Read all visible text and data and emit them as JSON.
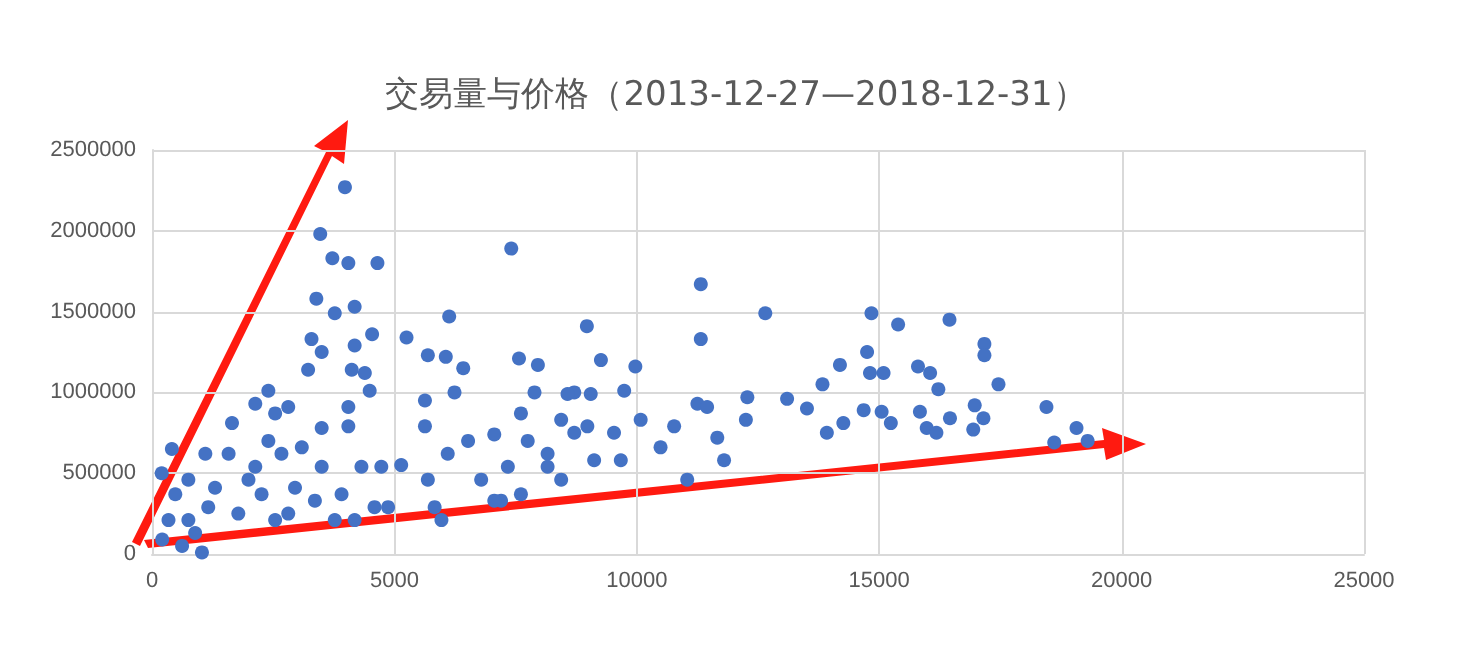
{
  "chart_data": {
    "type": "scatter",
    "title": "交易量与价格（2013-12-27—2018-12-31）",
    "xlim": [
      0,
      25000
    ],
    "xticks": [
      0,
      5000,
      10000,
      15000,
      20000,
      25000
    ],
    "ylim": [
      0,
      2500000
    ],
    "yticks": [
      0,
      500000,
      1000000,
      1500000,
      2000000,
      2500000
    ],
    "grid": true,
    "marker": "circle",
    "series": [
      {
        "color": "#4472c4",
        "x": [
          3980,
          3470,
          3720,
          4050,
          4650,
          3390,
          3770,
          4180,
          4540,
          3290,
          3500,
          4180,
          3220,
          4120,
          4390,
          4490,
          5250,
          5690,
          6130,
          6060,
          6420,
          7410,
          2400,
          2130,
          2810,
          2540,
          1650,
          410,
          1100,
          200,
          340,
          620,
          890,
          1160,
          480,
          750,
          1300,
          210,
          1030,
          750,
          1580,
          1780,
          2130,
          2400,
          2670,
          2950,
          2540,
          2260,
          2810,
          1990,
          3090,
          3500,
          3770,
          4050,
          4320,
          4590,
          3360,
          4180,
          4730,
          3500,
          3910,
          4870,
          4050,
          5140,
          5690,
          5830,
          5630,
          5630,
          6240,
          6100,
          6520,
          7060,
          7610,
          7890,
          8710,
          7340,
          8160,
          8980,
          6790,
          7610,
          7200,
          8440,
          5970,
          8970,
          7570,
          7960,
          9260,
          9970,
          11320,
          11320,
          12650,
          8570,
          9050,
          9740,
          8440,
          9530,
          10080,
          10770,
          11250,
          11450,
          10490,
          9670,
          11040,
          9120,
          8160,
          7750,
          7060,
          8710,
          11800,
          11660,
          12250,
          12280,
          13100,
          13510,
          13830,
          13920,
          14190,
          14260,
          14680,
          14750,
          14840,
          14810,
          15090,
          15050,
          15240,
          15390,
          15800,
          16050,
          16220,
          15840,
          15980,
          16180,
          16450,
          16460,
          16970,
          16940,
          17170,
          17170,
          17150,
          17460,
          18450,
          18610,
          19070,
          19300
        ],
        "values": [
          2270000,
          1980000,
          1830000,
          1800000,
          1800000,
          1580000,
          1490000,
          1530000,
          1360000,
          1330000,
          1250000,
          1290000,
          1140000,
          1140000,
          1120000,
          1010000,
          1340000,
          1230000,
          1470000,
          1220000,
          1150000,
          1890000,
          1010000,
          930000,
          910000,
          870000,
          810000,
          650000,
          620000,
          500000,
          210000,
          50000,
          130000,
          290000,
          370000,
          460000,
          410000,
          90000,
          10000,
          210000,
          620000,
          250000,
          540000,
          700000,
          620000,
          410000,
          210000,
          370000,
          250000,
          460000,
          660000,
          540000,
          210000,
          790000,
          540000,
          290000,
          330000,
          210000,
          540000,
          780000,
          370000,
          290000,
          910000,
          550000,
          460000,
          290000,
          790000,
          950000,
          1000000,
          620000,
          700000,
          740000,
          870000,
          1000000,
          1000000,
          540000,
          620000,
          790000,
          460000,
          370000,
          330000,
          460000,
          210000,
          1410000,
          1210000,
          1170000,
          1200000,
          1160000,
          1670000,
          1330000,
          1490000,
          990000,
          990000,
          1010000,
          830000,
          750000,
          830000,
          790000,
          930000,
          910000,
          660000,
          580000,
          460000,
          580000,
          540000,
          700000,
          330000,
          750000,
          580000,
          720000,
          830000,
          970000,
          960000,
          900000,
          1050000,
          750000,
          1170000,
          810000,
          890000,
          1250000,
          1490000,
          1120000,
          1120000,
          880000,
          810000,
          1420000,
          1160000,
          1120000,
          1020000,
          880000,
          780000,
          750000,
          1450000,
          840000,
          920000,
          770000,
          1300000,
          1230000,
          840000,
          1050000,
          910000,
          690000,
          780000,
          700000
        ]
      }
    ]
  }
}
